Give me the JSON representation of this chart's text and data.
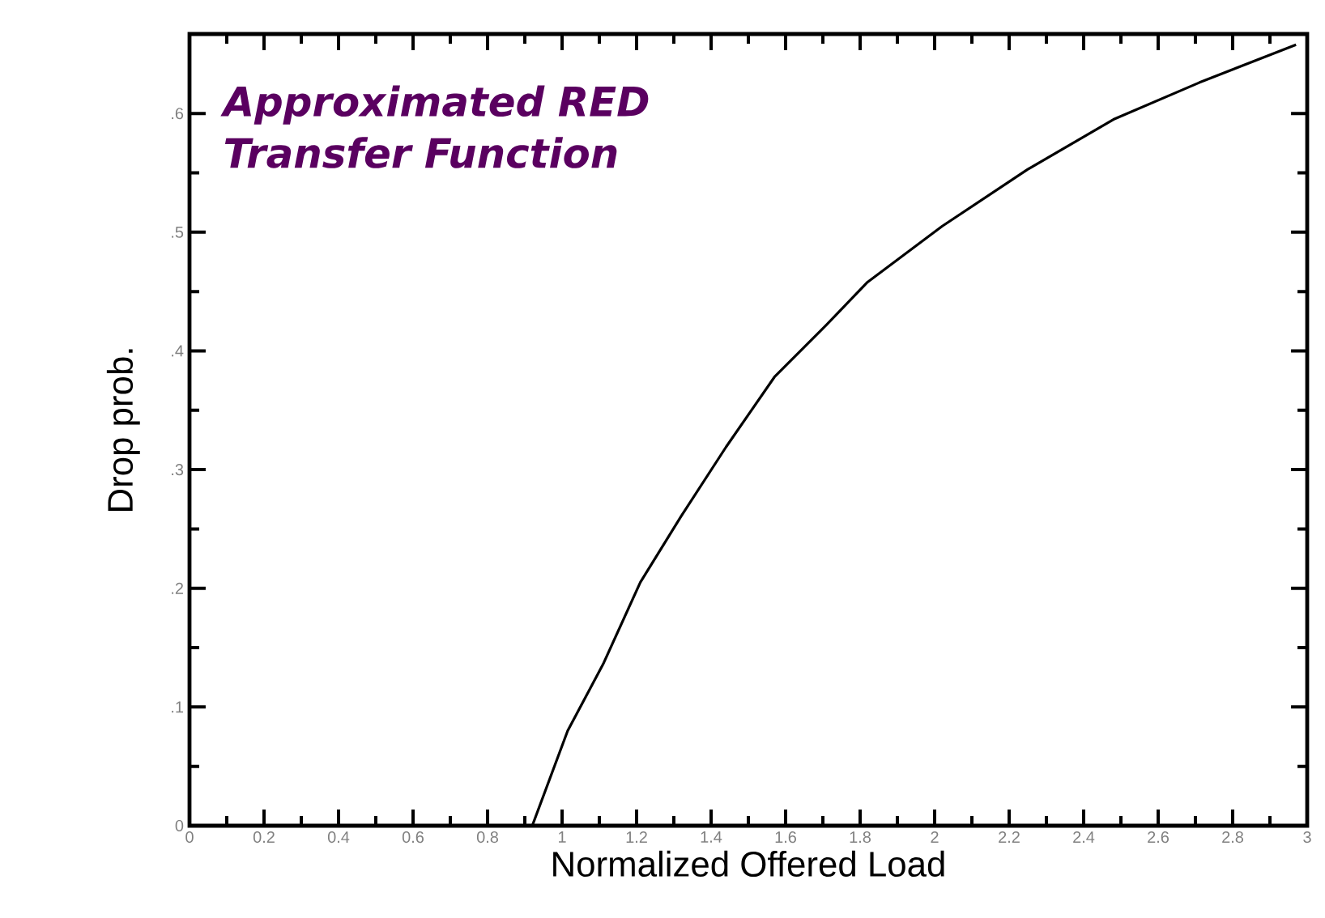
{
  "chart_data": {
    "type": "line",
    "title": "Approximated RED Transfer Function",
    "xlabel": "Normalized Offered Load",
    "ylabel": "Drop prob.",
    "x": [
      0.92,
      1.015,
      1.11,
      1.21,
      1.32,
      1.44,
      1.57,
      1.71,
      1.82,
      2.02,
      2.25,
      2.48,
      2.71,
      2.97
    ],
    "series": [
      {
        "color": "#000000",
        "values": [
          0,
          0.08,
          0.136,
          0.205,
          0.261,
          0.319,
          0.378,
          0.422,
          0.458,
          0.505,
          0.553,
          0.595,
          0.626,
          0.658
        ]
      }
    ],
    "xlim": [
      0,
      3
    ],
    "ylim": [
      0,
      0.667
    ],
    "xticks": [
      0,
      0.2,
      0.4,
      0.6,
      0.8,
      1,
      1.2,
      1.4,
      1.6,
      1.8,
      2,
      2.2,
      2.4,
      2.6,
      2.8,
      3
    ],
    "yticks": [
      0,
      {
        "value": 0.1,
        "label": ".1"
      },
      {
        "value": 0.2,
        "label": ".2"
      },
      {
        "value": 0.3,
        "label": ".3"
      },
      {
        "value": 0.4,
        "label": ".4"
      },
      {
        "value": 0.5,
        "label": ".5"
      },
      {
        "value": 0.6,
        "label": ".6"
      }
    ],
    "marker": "none",
    "line_style": "solid"
  }
}
